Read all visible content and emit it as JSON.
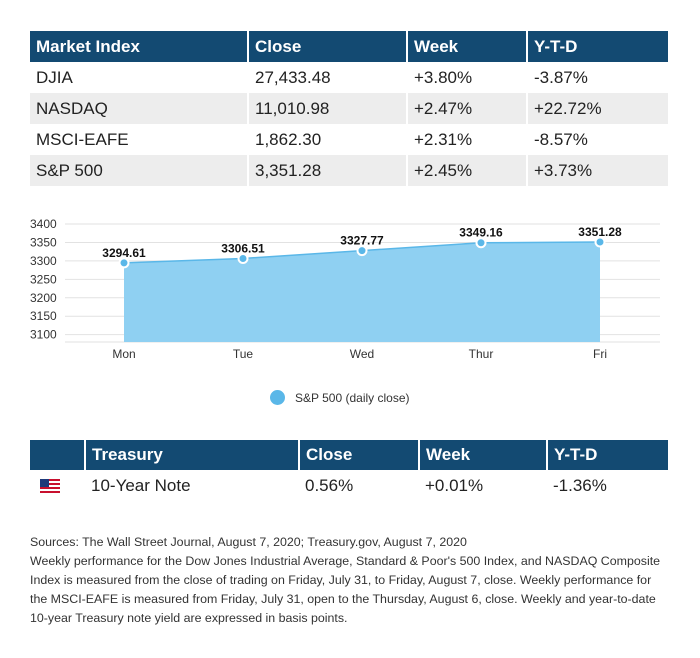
{
  "market_table": {
    "headers": [
      "Market Index",
      "Close",
      "Week",
      "Y-T-D"
    ],
    "rows": [
      [
        "DJIA",
        "27,433.48",
        "+3.80%",
        "-3.87%"
      ],
      [
        "NASDAQ",
        "11,010.98",
        "+2.47%",
        "+22.72%"
      ],
      [
        "MSCI-EAFE",
        "1,862.30",
        "+2.31%",
        "-8.57%"
      ],
      [
        "S&P 500",
        "3,351.28",
        "+2.45%",
        "+3.73%"
      ]
    ]
  },
  "chart_data": {
    "type": "area",
    "title": "",
    "xlabel": "",
    "ylabel": "",
    "categories": [
      "Mon",
      "Tue",
      "Wed",
      "Thur",
      "Fri"
    ],
    "series": [
      {
        "name": "S&P 500 (daily close)",
        "values": [
          3294.61,
          3306.51,
          3327.77,
          3349.16,
          3351.28
        ]
      }
    ],
    "data_labels": [
      "3294.61",
      "3306.51",
      "3327.77",
      "3349.16",
      "3351.28"
    ],
    "y_ticks": [
      3100,
      3150,
      3200,
      3250,
      3300,
      3350,
      3400
    ],
    "ylim": [
      3080,
      3400
    ],
    "grid": true,
    "legend_placement": "bottom",
    "colors": {
      "fill": "#8fd0f2",
      "line": "#5ab7e8",
      "point": "#5ab7e8"
    }
  },
  "legend": {
    "label": "S&P 500 (daily close)"
  },
  "treasury_table": {
    "headers": [
      "",
      "Treasury",
      "Close",
      "Week",
      "Y-T-D"
    ],
    "row": {
      "flag": "us-flag-icon",
      "name": "10-Year Note",
      "close": "0.56%",
      "week": "+0.01%",
      "ytd": "-1.36%"
    }
  },
  "notes": {
    "sources": "Sources: The Wall Street Journal, August 7, 2020; Treasury.gov, August 7, 2020",
    "body": "Weekly performance for the Dow Jones Industrial Average, Standard & Poor's 500 Index, and NASDAQ Composite Index is measured from the close of trading on Friday, July 31, to Friday, August 7, close. Weekly performance for the MSCI-EAFE is measured from Friday, July 31, open to the Thursday, August 6, close. Weekly and year-to-date 10-year Treasury note yield are expressed in basis points."
  },
  "colors": {
    "header_bg": "#134a72",
    "row_alt": "#ededed"
  }
}
